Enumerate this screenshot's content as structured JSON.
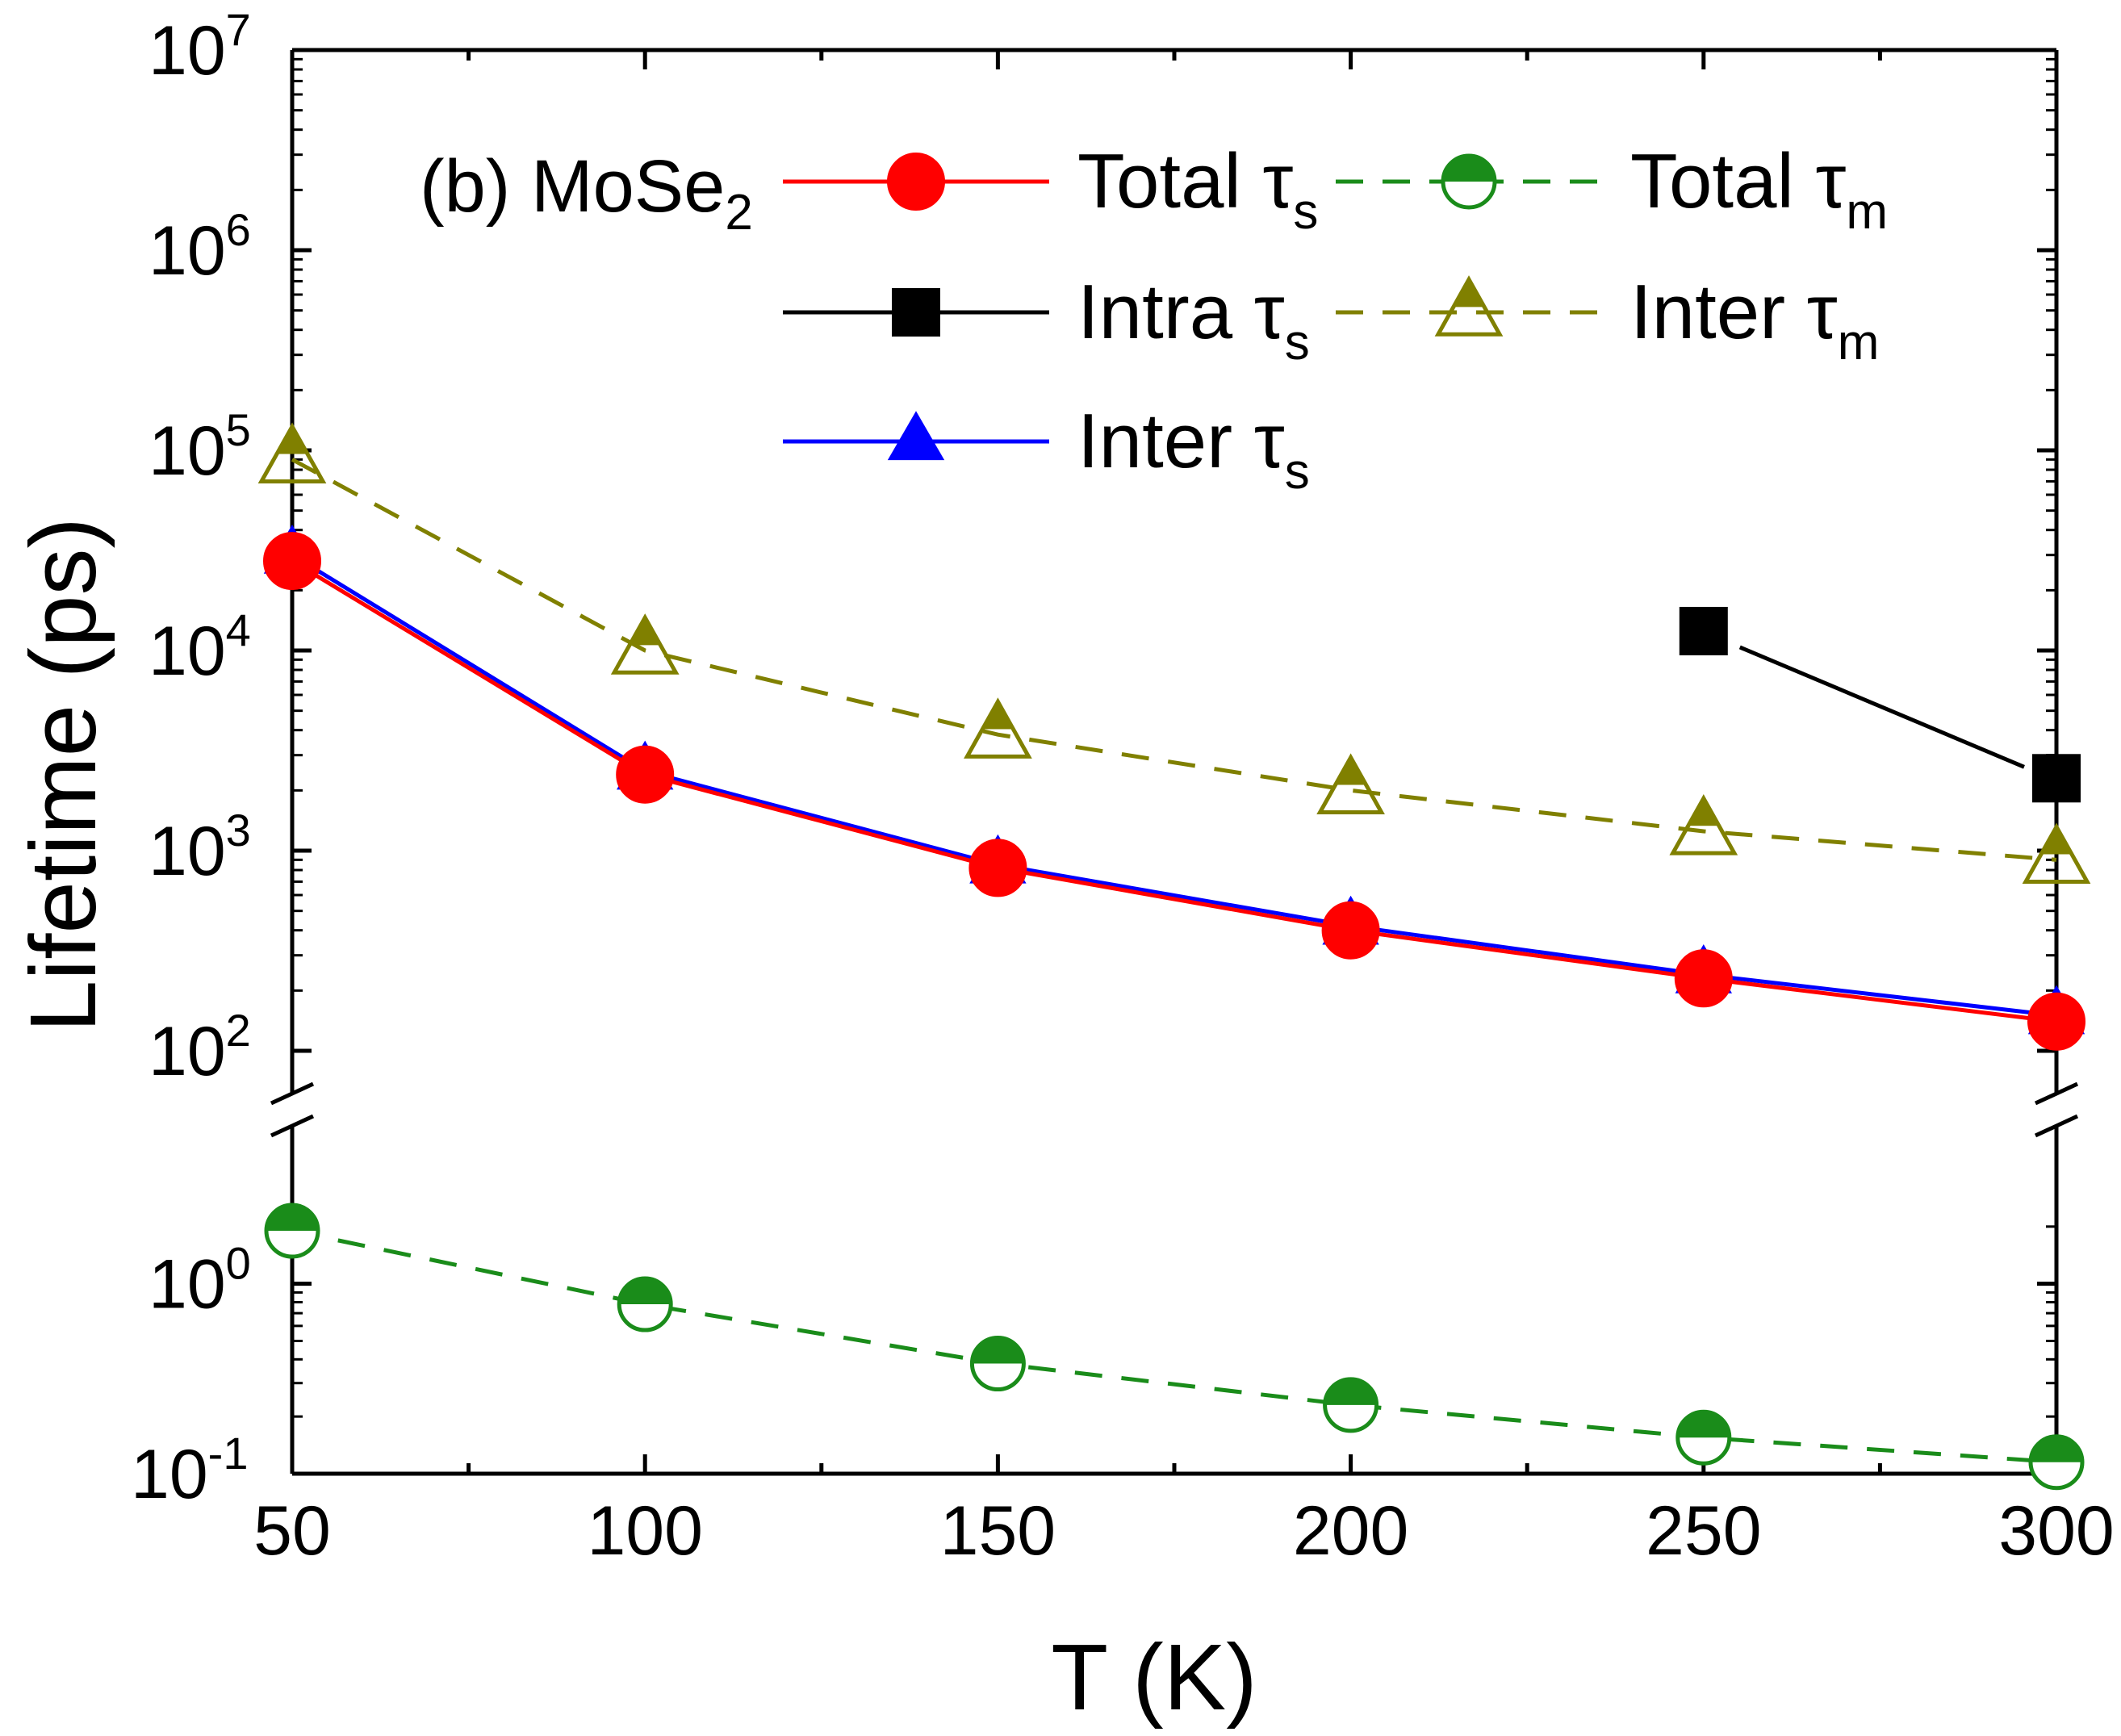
{
  "chart_data": {
    "type": "line",
    "panel_label": {
      "text": "(b) MoSe",
      "subscript": "2"
    },
    "xlabel": "T (K)",
    "ylabel": "Lifetime (ps)",
    "xlim": [
      50,
      300
    ],
    "xticks": [
      50,
      100,
      150,
      200,
      250,
      300
    ],
    "x_tick_labels": [
      "50",
      "100",
      "150",
      "200",
      "250",
      "300"
    ],
    "yscale": "log",
    "y_axis_break": {
      "lower_range": [
        0.1,
        2.5
      ],
      "upper_range": [
        100,
        10000000
      ]
    },
    "upper_yticks": [
      {
        "value": 100,
        "base": "10",
        "exp": "2"
      },
      {
        "value": 1000,
        "base": "10",
        "exp": "3"
      },
      {
        "value": 10000,
        "base": "10",
        "exp": "4"
      },
      {
        "value": 100000,
        "base": "10",
        "exp": "5"
      },
      {
        "value": 1000000,
        "base": "10",
        "exp": "6"
      },
      {
        "value": 10000000,
        "base": "10",
        "exp": "7"
      }
    ],
    "lower_yticks": [
      {
        "value": 0.1,
        "base": "10",
        "exp": "-1"
      },
      {
        "value": 1,
        "base": "10",
        "exp": "0"
      }
    ],
    "legend_position": "top",
    "series": [
      {
        "key": "inter_tau_s",
        "label": "Inter τ",
        "sub": "s",
        "color": "#0000ff",
        "marker": "triangle",
        "dash": "solid",
        "x": [
          50,
          100,
          150,
          200,
          250,
          300
        ],
        "values": [
          30000,
          2500,
          850,
          420,
          240,
          150
        ]
      },
      {
        "key": "total_tau_s",
        "label": "Total τ",
        "sub": "s",
        "color": "#ff0000",
        "marker": "circle",
        "dash": "solid",
        "x": [
          50,
          100,
          150,
          200,
          250,
          300
        ],
        "values": [
          28000,
          2400,
          820,
          400,
          230,
          140
        ]
      },
      {
        "key": "intra_tau_s",
        "label": "Intra τ",
        "sub": "s",
        "color": "#000000",
        "marker": "square",
        "dash": "solid",
        "x": [
          250,
          300
        ],
        "values": [
          12500,
          2300
        ]
      },
      {
        "key": "inter_tau_m",
        "label": "Inter τ",
        "sub": "m",
        "color": "#808000",
        "marker": "triangle-half",
        "dash": "dashed",
        "x": [
          50,
          100,
          150,
          200,
          250,
          300
        ],
        "values": [
          90000,
          10000,
          3800,
          2000,
          1250,
          900
        ]
      },
      {
        "key": "total_tau_m",
        "label": "Total τ",
        "sub": "m",
        "color": "#1a8c1a",
        "marker": "circle-half",
        "dash": "dashed",
        "x": [
          50,
          100,
          150,
          200,
          250,
          300
        ],
        "values": [
          1.9,
          0.78,
          0.38,
          0.23,
          0.155,
          0.115
        ]
      }
    ],
    "legend_order": [
      "total_tau_s",
      "intra_tau_s",
      "inter_tau_s",
      "total_tau_m",
      "inter_tau_m"
    ]
  }
}
